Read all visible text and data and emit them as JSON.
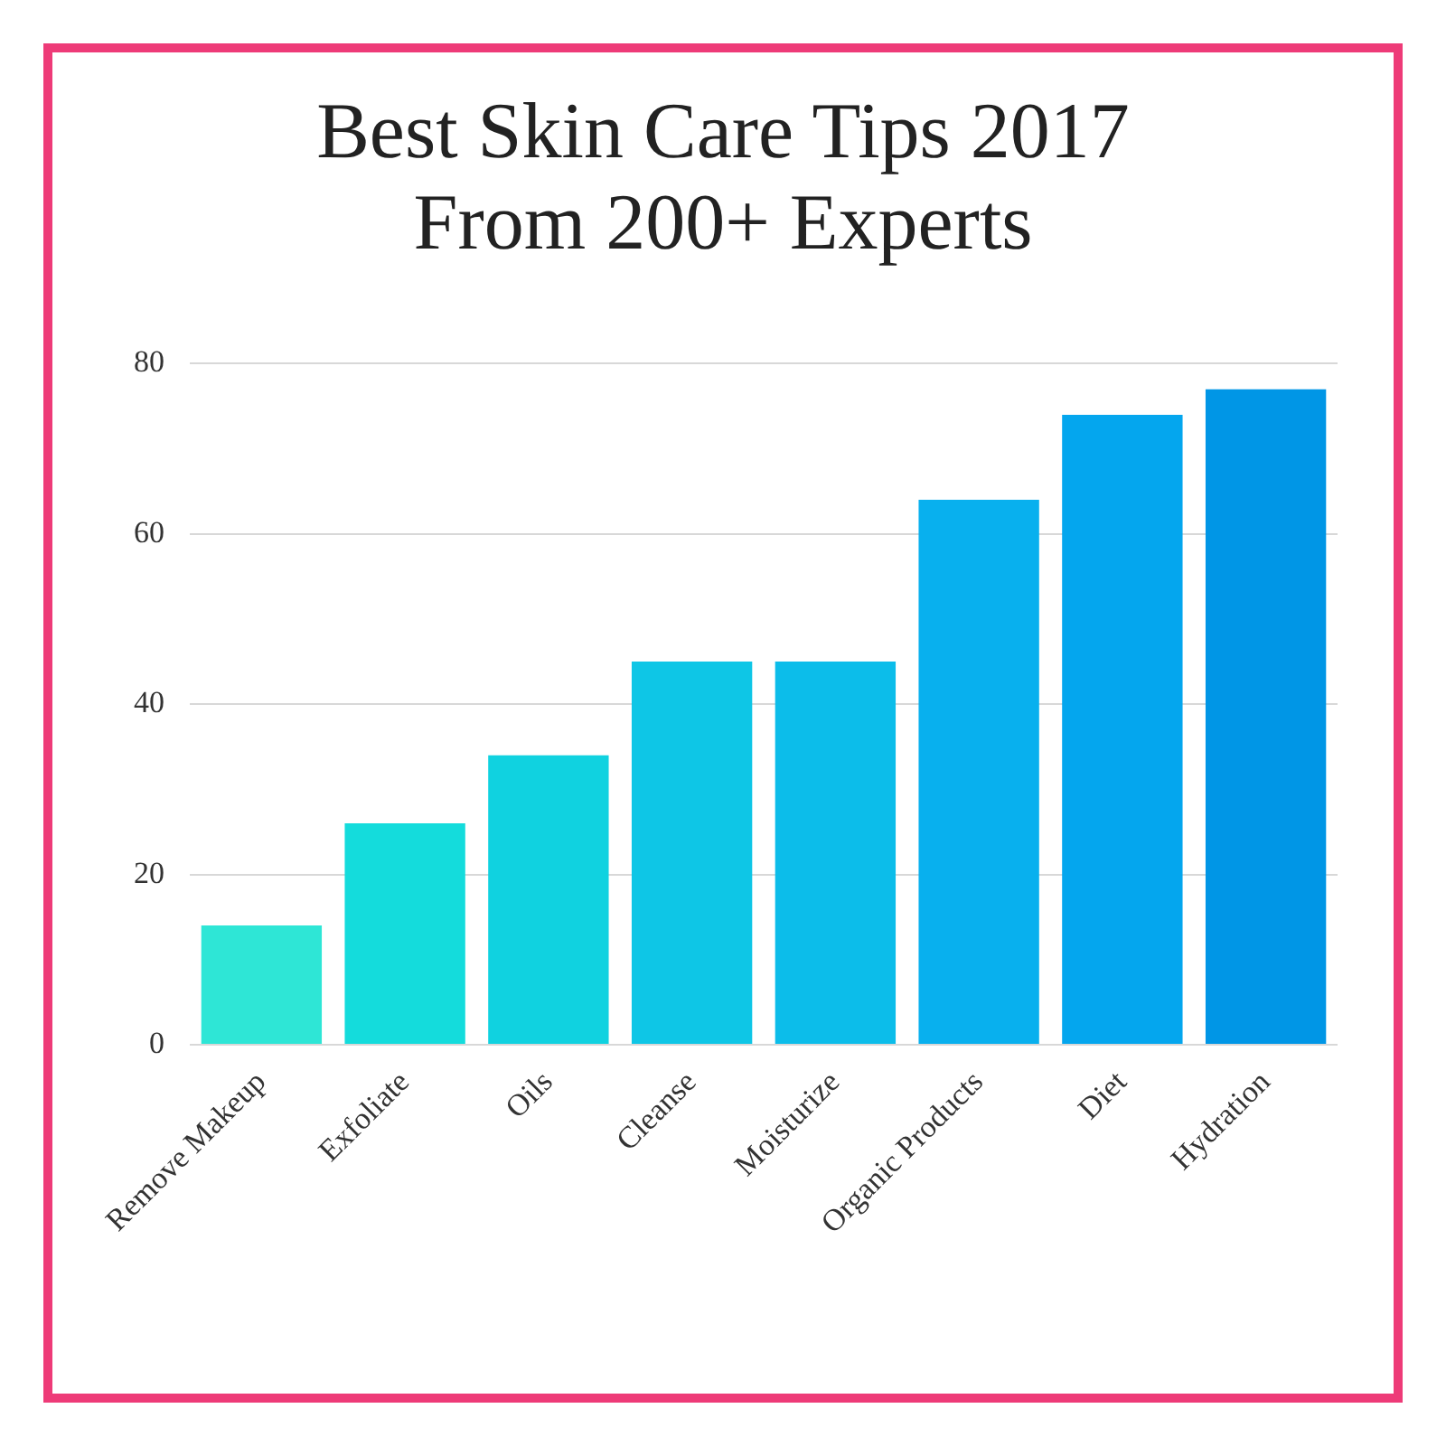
{
  "chart_data": {
    "type": "bar",
    "title": "Best Skin Care Tips 2017\nFrom 200+ Experts",
    "categories": [
      "Remove Makeup",
      "Exfoliate",
      "Oils",
      "Cleanse",
      "Moisturize",
      "Organic Products",
      "Diet",
      "Hydration"
    ],
    "values": [
      14,
      26,
      34,
      45,
      45,
      64,
      74,
      77
    ],
    "colors": [
      "#2ee6d6",
      "#14dcdc",
      "#10d2e0",
      "#0ec6e6",
      "#0cbdea",
      "#08b0ee",
      "#04a6ee",
      "#0096e6"
    ],
    "ylim": [
      0,
      80
    ],
    "yticks": [
      0,
      20,
      40,
      60,
      80
    ],
    "grid": "y",
    "legend": false
  }
}
